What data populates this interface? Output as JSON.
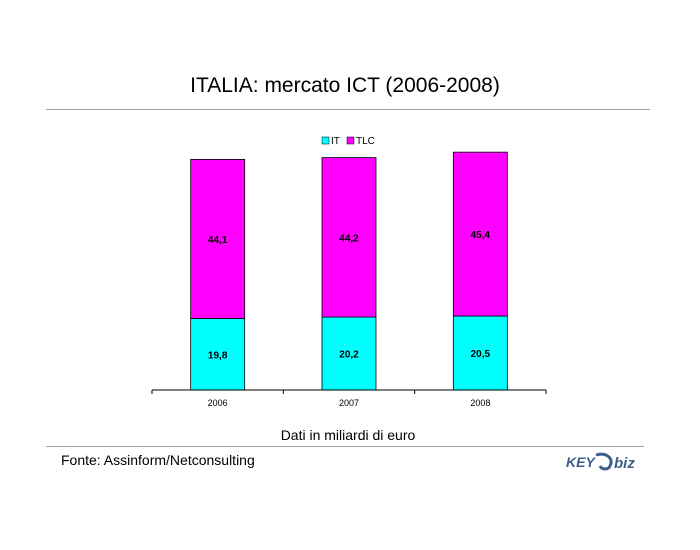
{
  "header": {
    "title": "ITALIA: mercato ICT (2006-2008)"
  },
  "footer": {
    "note": "Dati in miliardi di euro",
    "source": "Fonte: Assinform/Netconsulting",
    "logo_text": "KEY4biz"
  },
  "chart_data": {
    "type": "bar",
    "stacked": true,
    "categories": [
      "2006",
      "2007",
      "2008"
    ],
    "series": [
      {
        "name": "IT",
        "values": [
          19.8,
          20.2,
          20.5
        ],
        "labels": [
          "19,8",
          "20,2",
          "20,5"
        ],
        "color": "#00ffff"
      },
      {
        "name": "TLC",
        "values": [
          44.1,
          44.2,
          45.4
        ],
        "labels": [
          "44,1",
          "44,2",
          "45,4"
        ],
        "color": "#ff00ff"
      }
    ],
    "ylim": [
      0,
      66.5
    ],
    "legend": "top-center",
    "grid": false
  }
}
